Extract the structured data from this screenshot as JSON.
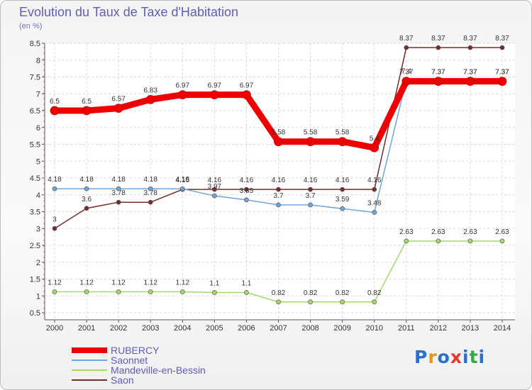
{
  "title": "Evolution du Taux de Taxe d'Habitation",
  "unit": "(en %)",
  "logo": {
    "letters": [
      "P",
      "r",
      "o",
      "x",
      "i",
      "t",
      "i"
    ],
    "colors": [
      "#2b6fc9",
      "#e8941a",
      "#2b6fc9",
      "#e03a2f",
      "#2b6fc9",
      "#3aa64a",
      "#2b6fc9"
    ]
  },
  "chart_data": {
    "type": "line",
    "x": [
      "2000",
      "2001",
      "2002",
      "2003",
      "2004",
      "2005",
      "2006",
      "2007",
      "2008",
      "2009",
      "2010",
      "2011",
      "2012",
      "2013",
      "2014"
    ],
    "ylim": [
      0.5,
      8.5
    ],
    "yticks": [
      "0.5",
      "1",
      "1.5",
      "2",
      "2.5",
      "3",
      "3.5",
      "4",
      "4.5",
      "5",
      "5.5",
      "6",
      "6.5",
      "7",
      "7.5",
      "8",
      "8.5"
    ],
    "legend_position": "bottom-left",
    "series": [
      {
        "name": "RUBERCY",
        "color": "#ee0000",
        "width": 9,
        "values": [
          6.5,
          6.5,
          6.57,
          6.83,
          6.97,
          6.97,
          6.97,
          5.58,
          5.58,
          5.58,
          5.4,
          7.37,
          7.37,
          7.37,
          7.37
        ],
        "labels": [
          "6.5",
          "6.5",
          "6.57",
          "6.83",
          "6.97",
          "6.97",
          "6.97",
          "5.58",
          "5.58",
          "5.58",
          "5.4",
          "7.37",
          "7.37",
          "7.37",
          "7.37"
        ]
      },
      {
        "name": "Saonnet",
        "color": "#6fa6d8",
        "width": 1.5,
        "values": [
          4.18,
          4.18,
          4.18,
          4.18,
          4.18,
          3.97,
          3.85,
          3.7,
          3.7,
          3.59,
          3.48,
          7.4,
          7.37,
          7.37,
          7.37
        ],
        "labels": [
          "4.18",
          "4.18",
          "4.18",
          "4.18",
          "4.18",
          "3.97",
          "3.85",
          "3.7",
          "3.7",
          "3.59",
          "3.48",
          "7.4",
          "7.37",
          "7.37",
          "7.37"
        ]
      },
      {
        "name": "Mandeville-en-Bessin",
        "color": "#a6d96a",
        "width": 1.5,
        "values": [
          1.12,
          1.12,
          1.12,
          1.12,
          1.12,
          1.1,
          1.1,
          0.82,
          0.82,
          0.82,
          0.82,
          2.63,
          2.63,
          2.63,
          2.63
        ],
        "labels": [
          "1.12",
          "1.12",
          "1.12",
          "1.12",
          "1.12",
          "1.1",
          "1.1",
          "0.82",
          "0.82",
          "0.82",
          "0.82",
          "2.63",
          "2.63",
          "2.63",
          "2.63"
        ]
      },
      {
        "name": "Saon",
        "color": "#7a2b2b",
        "width": 1.5,
        "values": [
          3,
          3.6,
          3.78,
          3.78,
          4.16,
          4.16,
          4.16,
          4.16,
          4.16,
          4.16,
          4.16,
          8.37,
          8.37,
          8.37,
          8.37
        ],
        "labels": [
          "3",
          "3.6",
          "3.78",
          "3.78",
          "4.16",
          "4.16",
          "4.16",
          "4.16",
          "4.16",
          "4.16",
          "4.16",
          "8.37",
          "8.37",
          "8.37",
          "8.37"
        ]
      }
    ]
  }
}
